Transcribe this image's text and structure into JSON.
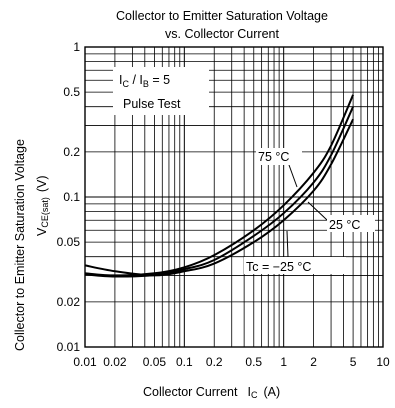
{
  "chart_data": {
    "type": "line",
    "title_lines": [
      "Collector to Emitter Saturation Voltage",
      "vs. Collector Current"
    ],
    "xlabel": {
      "main": "Collector Current",
      "symbol": "I",
      "subscript": "C",
      "unit": "(A)"
    },
    "ylabel": {
      "main": "Collector to Emitter Saturation Voltage",
      "symbol": "V",
      "subscript": "CE(sat)",
      "unit": "(V)"
    },
    "xscale": "log",
    "yscale": "log",
    "xlim": [
      0.01,
      10
    ],
    "ylim": [
      0.01,
      1
    ],
    "x_tick_labels": [
      "0.01",
      "0.02",
      "0.05",
      "0.1",
      "0.2",
      "0.5",
      "1",
      "2",
      "5",
      "10"
    ],
    "y_tick_labels": [
      "0.01",
      "0.02",
      "0.05",
      "0.1",
      "0.2",
      "0.5",
      "1"
    ],
    "grid": true,
    "conditions": {
      "ratio_symbol_1": "I",
      "ratio_sub_1": "C",
      "ratio_symbol_2": " / I",
      "ratio_sub_2": "B",
      "ratio_value": " = 5",
      "test": "Pulse Test"
    },
    "series": [
      {
        "name": "75 °C",
        "points": [
          [
            0.01,
            0.031
          ],
          [
            0.02,
            0.03
          ],
          [
            0.05,
            0.031
          ],
          [
            0.1,
            0.034
          ],
          [
            0.2,
            0.041
          ],
          [
            0.5,
            0.06
          ],
          [
            1,
            0.088
          ],
          [
            2,
            0.145
          ],
          [
            3,
            0.22
          ],
          [
            5,
            0.48
          ]
        ]
      },
      {
        "name": "25 °C",
        "points": [
          [
            0.01,
            0.0305
          ],
          [
            0.02,
            0.0295
          ],
          [
            0.05,
            0.0302
          ],
          [
            0.1,
            0.033
          ],
          [
            0.2,
            0.038
          ],
          [
            0.5,
            0.055
          ],
          [
            1,
            0.078
          ],
          [
            2,
            0.125
          ],
          [
            3,
            0.19
          ],
          [
            5,
            0.4
          ]
        ]
      },
      {
        "name": "Tc = −25 °C",
        "points": [
          [
            0.01,
            0.035
          ],
          [
            0.02,
            0.032
          ],
          [
            0.05,
            0.03
          ],
          [
            0.1,
            0.032
          ],
          [
            0.2,
            0.036
          ],
          [
            0.5,
            0.05
          ],
          [
            1,
            0.07
          ],
          [
            2,
            0.11
          ],
          [
            3,
            0.165
          ],
          [
            5,
            0.33
          ]
        ]
      }
    ]
  }
}
